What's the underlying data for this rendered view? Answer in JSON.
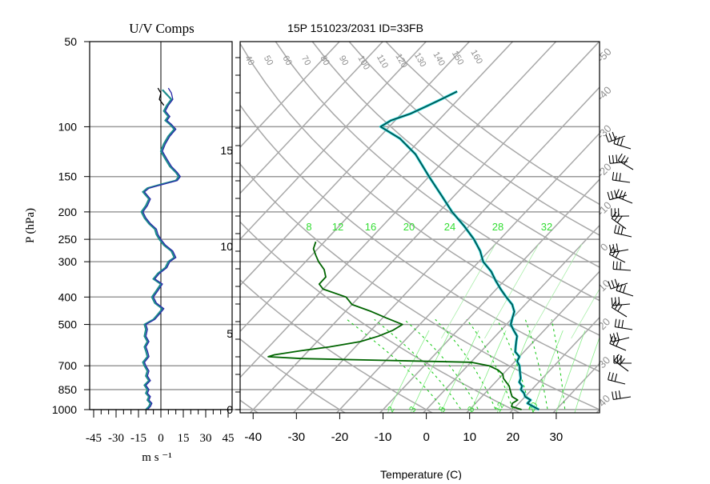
{
  "chart_data": [
    {
      "type": "line",
      "title": "U/V Comps",
      "ylabel": "P (hPa)",
      "xlabel": "m s ⁻¹",
      "y_scale": "log-reversed",
      "y_ticks": [
        50,
        100,
        150,
        200,
        250,
        300,
        400,
        500,
        700,
        850,
        1000
      ],
      "x_ticks": [
        "-45",
        "-30",
        "-15",
        "0",
        "15",
        "30",
        "45"
      ],
      "xlim": [
        -45,
        45
      ],
      "ylim": [
        1000,
        50
      ],
      "series": [
        {
          "color": "#1e8c8c",
          "points": [
            [
              -10,
              1000
            ],
            [
              -8,
              975
            ],
            [
              -7,
              950
            ],
            [
              -9,
              925
            ],
            [
              -8,
              900
            ],
            [
              -10,
              875
            ],
            [
              -9,
              850
            ],
            [
              -11,
              820
            ],
            [
              -8,
              790
            ],
            [
              -10,
              760
            ],
            [
              -9,
              730
            ],
            [
              -11,
              700
            ],
            [
              -12,
              680
            ],
            [
              -9,
              650
            ],
            [
              -10,
              620
            ],
            [
              -11,
              600
            ],
            [
              -9,
              575
            ],
            [
              -11,
              550
            ],
            [
              -10,
              520
            ],
            [
              -11,
              500
            ],
            [
              -5,
              480
            ],
            [
              -2,
              460
            ],
            [
              1,
              440
            ],
            [
              -4,
              420
            ],
            [
              -6,
              400
            ],
            [
              -3,
              380
            ],
            [
              0,
              360
            ],
            [
              -5,
              345
            ],
            [
              -2,
              330
            ],
            [
              3,
              315
            ],
            [
              5,
              300
            ],
            [
              9,
              290
            ],
            [
              7,
              275
            ],
            [
              2,
              262
            ],
            [
              -1,
              250
            ],
            [
              -3,
              240
            ],
            [
              -4,
              230
            ],
            [
              -8,
              220
            ],
            [
              -11,
              210
            ],
            [
              -13,
              200
            ],
            [
              -10,
              190
            ],
            [
              -8,
              180
            ],
            [
              -12,
              170
            ],
            [
              -9,
              165
            ],
            [
              0,
              160
            ],
            [
              10,
              155
            ],
            [
              12,
              150
            ],
            [
              10,
              145
            ],
            [
              6,
              138
            ],
            [
              3,
              130
            ],
            [
              0,
              122
            ],
            [
              2,
              115
            ],
            [
              5,
              108
            ],
            [
              9,
              102
            ],
            [
              6,
              98
            ],
            [
              3,
              95
            ],
            [
              5,
              92
            ],
            [
              2,
              88
            ],
            [
              4,
              84
            ],
            [
              7,
              80
            ],
            [
              4,
              77
            ],
            [
              1,
              74
            ]
          ]
        },
        {
          "color": "#2a2aa8",
          "points": [
            [
              -9,
              1000
            ],
            [
              -7,
              975
            ],
            [
              -6,
              950
            ],
            [
              -8,
              925
            ],
            [
              -7,
              900
            ],
            [
              -9,
              875
            ],
            [
              -8,
              850
            ],
            [
              -10,
              820
            ],
            [
              -7,
              790
            ],
            [
              -9,
              760
            ],
            [
              -8,
              730
            ],
            [
              -10,
              700
            ],
            [
              -11,
              680
            ],
            [
              -8,
              650
            ],
            [
              -9,
              620
            ],
            [
              -10,
              600
            ],
            [
              -8,
              575
            ],
            [
              -10,
              550
            ],
            [
              -9,
              520
            ],
            [
              -10,
              500
            ],
            [
              -4,
              480
            ],
            [
              -1,
              460
            ],
            [
              2,
              440
            ],
            [
              -3,
              420
            ],
            [
              -5,
              400
            ],
            [
              -2,
              380
            ],
            [
              1,
              360
            ],
            [
              -4,
              345
            ],
            [
              -1,
              330
            ],
            [
              4,
              315
            ],
            [
              6,
              300
            ],
            [
              10,
              290
            ],
            [
              8,
              275
            ],
            [
              3,
              262
            ],
            [
              0,
              250
            ],
            [
              -2,
              240
            ],
            [
              -3,
              230
            ],
            [
              -7,
              220
            ],
            [
              -10,
              210
            ],
            [
              -12,
              200
            ],
            [
              -9,
              190
            ],
            [
              -7,
              180
            ],
            [
              -11,
              170
            ],
            [
              -8,
              165
            ],
            [
              1,
              160
            ],
            [
              11,
              155
            ],
            [
              13,
              150
            ],
            [
              11,
              145
            ],
            [
              7,
              138
            ],
            [
              4,
              130
            ],
            [
              1,
              122
            ],
            [
              3,
              115
            ],
            [
              6,
              108
            ],
            [
              10,
              102
            ],
            [
              7,
              98
            ],
            [
              4,
              95
            ],
            [
              6,
              92
            ],
            [
              3,
              88
            ],
            [
              5,
              84
            ],
            [
              8,
              80
            ],
            [
              7,
              76
            ],
            [
              5,
              73
            ]
          ]
        },
        {
          "color": "#000000",
          "points": [
            [
              2,
              84
            ],
            [
              -1,
              80
            ],
            [
              0,
              76
            ],
            [
              -2,
              73
            ]
          ]
        }
      ]
    },
    {
      "type": "line",
      "title": "15P 151023/2031 ID=33FB",
      "xlabel": "Temperature (C)",
      "x_ticks": [
        "-40",
        "-30",
        "-20",
        "-10",
        "0",
        "10",
        "20",
        "30"
      ],
      "y_ticks_km": [
        "0",
        "5",
        "10",
        "15"
      ],
      "xlim": [
        -43,
        40
      ],
      "ylim": [
        1000,
        50
      ],
      "skew": "skew-T log-p",
      "isotherms_C": [
        -100,
        -90,
        -80,
        -70,
        -60,
        -50,
        -40,
        -30,
        -20,
        -10,
        0,
        10,
        20,
        30,
        40
      ],
      "isotherm_labels": [
        "-50",
        "-40",
        "-30",
        "-20",
        "-10",
        "0",
        "10",
        "20",
        "30",
        "40"
      ],
      "dry_adiabat_labels": [
        "40",
        "50",
        "60",
        "70",
        "80",
        "90",
        "100",
        "110",
        "120",
        "130",
        "140",
        "150",
        "160"
      ],
      "dry_adiabat_thetas_C": [
        -80,
        -60,
        -40,
        -20,
        0,
        20,
        40,
        60,
        80,
        100,
        120,
        140,
        160
      ],
      "mixing_ratio_labels": [
        "8",
        "12",
        "16",
        "20",
        "24",
        "28",
        "32"
      ],
      "mixing_ratio_bottom_labels": [
        "2",
        "3",
        "5",
        "8",
        "12",
        "20"
      ],
      "temperature": [
        [
          1000,
          26
        ],
        [
          975,
          24
        ],
        [
          950,
          22
        ],
        [
          925,
          22
        ],
        [
          900,
          20
        ],
        [
          875,
          19
        ],
        [
          850,
          17.5
        ],
        [
          825,
          17
        ],
        [
          800,
          15.5
        ],
        [
          775,
          15
        ],
        [
          750,
          14
        ],
        [
          725,
          13
        ],
        [
          700,
          12
        ],
        [
          675,
          10.5
        ],
        [
          650,
          10
        ],
        [
          625,
          8
        ],
        [
          600,
          7
        ],
        [
          575,
          6
        ],
        [
          550,
          5
        ],
        [
          525,
          3
        ],
        [
          500,
          1
        ],
        [
          475,
          0
        ],
        [
          450,
          -1
        ],
        [
          425,
          -3
        ],
        [
          400,
          -6
        ],
        [
          375,
          -9
        ],
        [
          350,
          -12
        ],
        [
          325,
          -15
        ],
        [
          300,
          -19
        ],
        [
          275,
          -22
        ],
        [
          250,
          -26
        ],
        [
          225,
          -31
        ],
        [
          200,
          -37
        ],
        [
          175,
          -43
        ],
        [
          150,
          -50
        ],
        [
          125,
          -58
        ],
        [
          110,
          -65
        ],
        [
          100,
          -72
        ],
        [
          95,
          -71
        ],
        [
          90,
          -68
        ],
        [
          85,
          -66
        ],
        [
          80,
          -64
        ],
        [
          75,
          -62
        ]
      ],
      "dewpoint": [
        [
          1000,
          22
        ],
        [
          975,
          19
        ],
        [
          950,
          18.5
        ],
        [
          925,
          19
        ],
        [
          900,
          17
        ],
        [
          875,
          16
        ],
        [
          850,
          15
        ],
        [
          825,
          14
        ],
        [
          800,
          12.5
        ],
        [
          775,
          11
        ],
        [
          750,
          10
        ],
        [
          725,
          8
        ],
        [
          700,
          5
        ],
        [
          680,
          0
        ],
        [
          670,
          -20
        ],
        [
          660,
          -40
        ],
        [
          650,
          -48
        ],
        [
          640,
          -47
        ],
        [
          620,
          -42
        ],
        [
          600,
          -36
        ],
        [
          575,
          -30
        ],
        [
          550,
          -27
        ],
        [
          525,
          -25
        ],
        [
          500,
          -24
        ],
        [
          475,
          -29
        ],
        [
          450,
          -34
        ],
        [
          425,
          -40
        ],
        [
          400,
          -43
        ],
        [
          375,
          -50
        ],
        [
          360,
          -52
        ],
        [
          340,
          -52
        ],
        [
          320,
          -54
        ],
        [
          300,
          -57
        ],
        [
          285,
          -59
        ],
        [
          270,
          -61
        ],
        [
          255,
          -62
        ]
      ],
      "wind_barbs_count": 24
    }
  ]
}
